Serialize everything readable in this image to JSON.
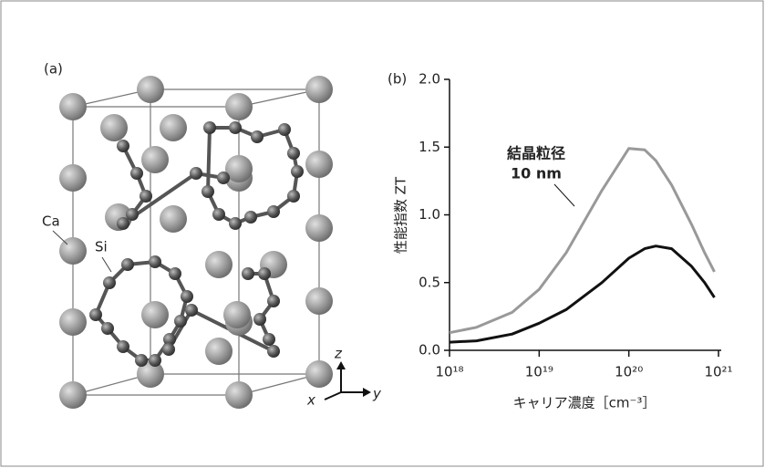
{
  "panel_a": {
    "label": "(a)",
    "atom_ca": "Ca",
    "atom_si": "Si",
    "axis_z": "z",
    "axis_x": "x",
    "axis_y": "y"
  },
  "chart_data": {
    "type": "line",
    "panel_label": "(b)",
    "y_label": "性能指数 ZT",
    "x_label": "キャリア濃度［cm⁻³］",
    "annotation": [
      "結晶粒径",
      "10 nm"
    ],
    "x_scale": "log",
    "x": [
      1e+18,
      2e+18,
      5e+18,
      1e+19,
      2e+19,
      5e+19,
      1e+20,
      1.5e+20,
      2e+20,
      3e+20,
      5e+20,
      7e+20,
      9e+20
    ],
    "series": [
      {
        "color": "#999999",
        "values": [
          0.13,
          0.17,
          0.28,
          0.45,
          0.72,
          1.18,
          1.49,
          1.48,
          1.4,
          1.22,
          0.93,
          0.72,
          0.58
        ]
      },
      {
        "color": "#111111",
        "values": [
          0.06,
          0.07,
          0.12,
          0.2,
          0.3,
          0.5,
          0.68,
          0.75,
          0.77,
          0.75,
          0.62,
          0.5,
          0.39
        ]
      }
    ],
    "xlim": [
      1e+18,
      1e+21
    ],
    "xticks": [
      {
        "value": 1e+18,
        "label": "10¹⁸"
      },
      {
        "value": 1e+19,
        "label": "10¹⁹"
      },
      {
        "value": 1e+20,
        "label": "10²⁰"
      },
      {
        "value": 1e+21,
        "label": "10²¹"
      }
    ],
    "ylim": [
      0,
      2
    ],
    "yticks": [
      {
        "value": 0,
        "label": "0.0"
      },
      0.5,
      {
        "value": 1,
        "label": "1.0"
      },
      1.5,
      {
        "value": 2,
        "label": "2.0"
      }
    ],
    "grid": false
  }
}
